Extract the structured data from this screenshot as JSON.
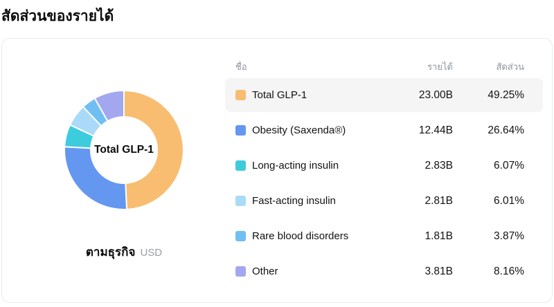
{
  "page": {
    "title": "สัดส่วนของรายได้"
  },
  "chart": {
    "center_label": "Total GLP-1",
    "caption": "ตามธุรกิจ",
    "caption_unit": "USD"
  },
  "table": {
    "headers": {
      "name": "ชื่อ",
      "revenue": "รายได้",
      "share": "สัดส่วน"
    },
    "rows": [
      {
        "name": "Total GLP-1",
        "revenue": "23.00B",
        "share": "49.25%",
        "highlighted": true
      },
      {
        "name": "Obesity (Saxenda®)",
        "revenue": "12.44B",
        "share": "26.64%",
        "highlighted": false
      },
      {
        "name": "Long-acting insulin",
        "revenue": "2.83B",
        "share": "6.07%",
        "highlighted": false
      },
      {
        "name": "Fast-acting insulin",
        "revenue": "2.81B",
        "share": "6.01%",
        "highlighted": false
      },
      {
        "name": "Rare blood disorders",
        "revenue": "1.81B",
        "share": "3.87%",
        "highlighted": false
      },
      {
        "name": "Other",
        "revenue": "3.81B",
        "share": "8.16%",
        "highlighted": false
      }
    ]
  },
  "chart_data": {
    "type": "pie",
    "donut": true,
    "title": "สัดส่วนของรายได้",
    "subtitle": "ตามธุรกิจ",
    "unit": "USD",
    "center_label": "Total GLP-1",
    "categories": [
      "Total GLP-1",
      "Obesity (Saxenda®)",
      "Long-acting insulin",
      "Fast-acting insulin",
      "Rare blood disorders",
      "Other"
    ],
    "values_billions": [
      23.0,
      12.44,
      2.83,
      2.81,
      1.81,
      3.81
    ],
    "percentages": [
      49.25,
      26.64,
      6.07,
      6.01,
      3.87,
      8.16
    ],
    "colors": [
      "#F8BD70",
      "#6497F0",
      "#3DCCDD",
      "#A9DAF8",
      "#70BFF3",
      "#A3A7F0"
    ],
    "start_angle_deg": 0,
    "direction": "clockwise",
    "legend_position": "right"
  }
}
